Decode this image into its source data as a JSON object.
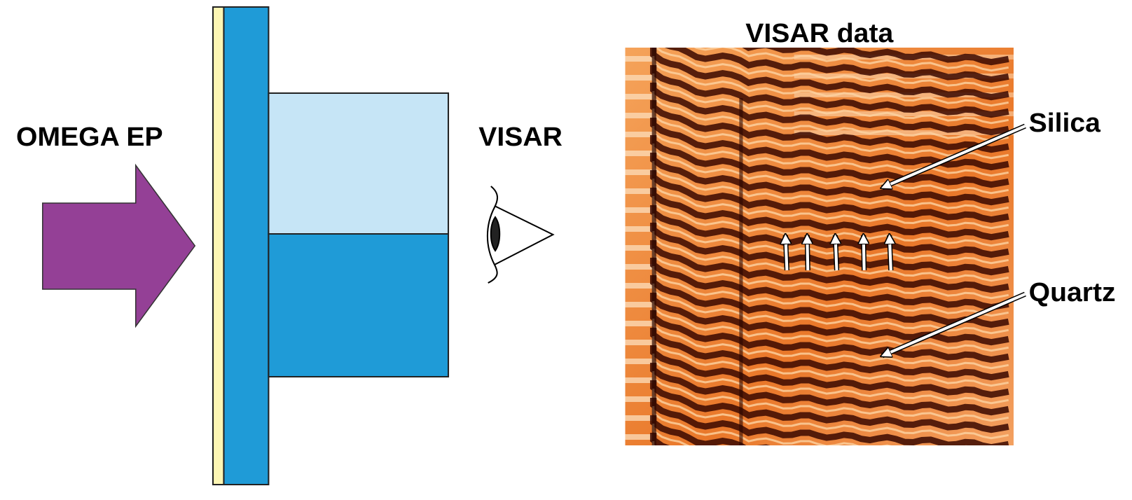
{
  "laser_label": "OMEGA EP",
  "diagnostic_label": "VISAR",
  "data_title": "VISAR data",
  "annotations": {
    "top": "Silica",
    "bottom": "Quartz"
  }
}
